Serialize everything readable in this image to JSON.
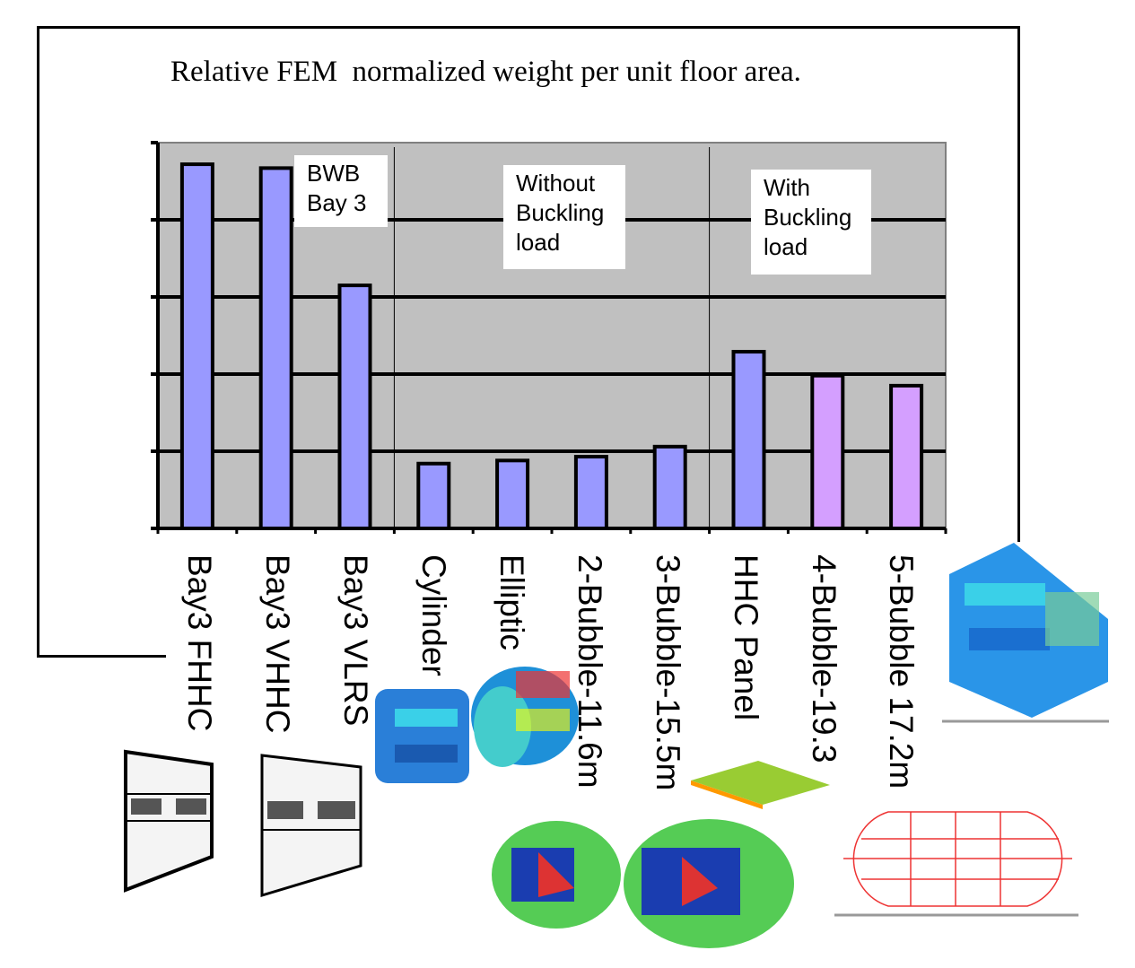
{
  "chart_data": {
    "type": "bar",
    "title": "Relative FEM  normalized weight per unit floor area.",
    "xlabel": "",
    "ylabel": "",
    "ylim": [
      0,
      5
    ],
    "grid": true,
    "y_tick_labels_shown": false,
    "categories": [
      "Bay3 FHHC",
      "Bay3 VHHC",
      "Bay3 VLRS",
      "Cylinder",
      "Elliptic",
      "2-Bubble-11.6m",
      "3-Bubble-15.5m",
      "HHC Panel",
      "4-Bubble-19.3",
      "5-Bubble 17.2m"
    ],
    "values": [
      4.72,
      4.67,
      3.15,
      0.84,
      0.88,
      0.93,
      1.06,
      2.29,
      1.98,
      1.85
    ],
    "bar_colors": [
      "#9999ff",
      "#9999ff",
      "#9999ff",
      "#9999ff",
      "#9999ff",
      "#9999ff",
      "#9999ff",
      "#9999ff",
      "#d49fff",
      "#d49fff"
    ],
    "plot_background": "#c0c0c0",
    "groups": [
      {
        "lines": [
          "BWB",
          "Bay 3"
        ]
      },
      {
        "lines": [
          "Without",
          "Buckling",
          "load"
        ]
      },
      {
        "lines": [
          "With",
          "Buckling",
          "load"
        ]
      }
    ]
  }
}
